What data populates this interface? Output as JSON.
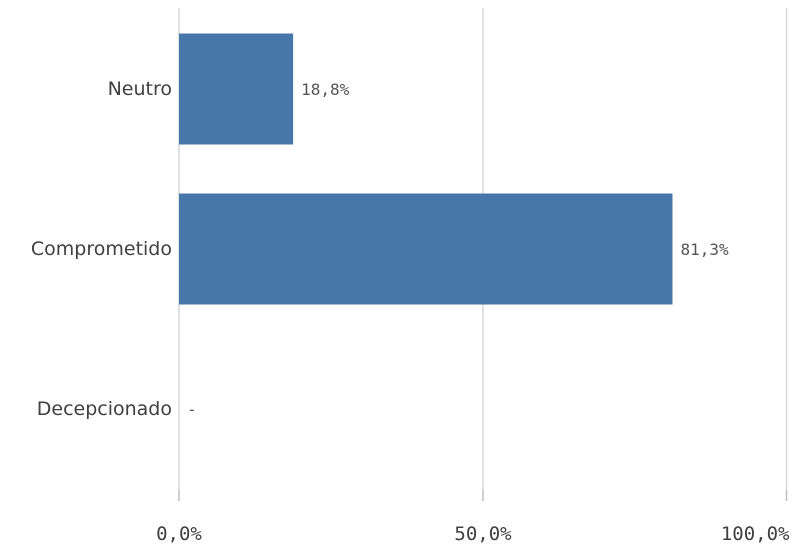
{
  "chart_data": {
    "type": "bar",
    "orientation": "horizontal",
    "categories": [
      "Neutro",
      "Comprometido",
      "Decepcionado"
    ],
    "values": [
      18.8,
      81.3,
      0
    ],
    "value_labels": [
      "18,8%",
      "81,3%",
      "-"
    ],
    "xlim": [
      0,
      100
    ],
    "x_ticks": [
      0,
      50,
      100
    ],
    "x_tick_labels": [
      "0,0%",
      "50,0%",
      "100,0%"
    ],
    "title": "",
    "xlabel": "",
    "ylabel": "",
    "grid": "vertical",
    "legend": "none",
    "bar_color": "#4677a8",
    "grid_color": "#d9d9d9"
  }
}
